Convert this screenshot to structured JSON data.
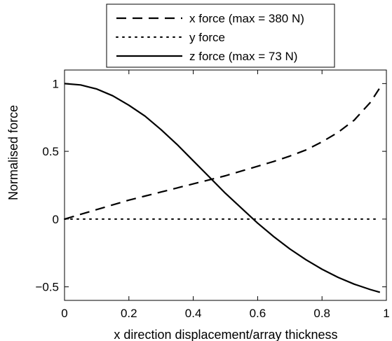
{
  "chart_data": {
    "type": "line",
    "xlabel": "x direction displacement/array thickness",
    "ylabel": "Normalised force",
    "xlim": [
      0,
      1
    ],
    "ylim": [
      -0.6,
      1.1
    ],
    "x_ticks": [
      0,
      0.2,
      0.4,
      0.6,
      0.8,
      1
    ],
    "x_tick_labels": [
      "0",
      "0.2",
      "0.4",
      "0.6",
      "0.8",
      "1"
    ],
    "y_ticks": [
      -0.5,
      0,
      0.5,
      1
    ],
    "y_tick_labels": [
      "−0.5",
      "0",
      "0.5",
      "1"
    ],
    "grid": false,
    "legend_position": "top (above plot)",
    "x": [
      0,
      0.05,
      0.1,
      0.15,
      0.2,
      0.25,
      0.3,
      0.35,
      0.4,
      0.45,
      0.5,
      0.55,
      0.6,
      0.65,
      0.7,
      0.75,
      0.8,
      0.85,
      0.9,
      0.95,
      0.98
    ],
    "series": [
      {
        "name": "x force (max = 380 N)",
        "style": "dashed",
        "color": "#000000",
        "values": [
          0,
          0.035,
          0.07,
          0.105,
          0.14,
          0.17,
          0.2,
          0.23,
          0.26,
          0.29,
          0.32,
          0.355,
          0.39,
          0.425,
          0.465,
          0.51,
          0.57,
          0.64,
          0.73,
          0.86,
          0.97
        ]
      },
      {
        "name": "y force",
        "style": "dotted",
        "color": "#000000",
        "values": [
          0,
          0,
          0,
          0,
          0,
          0,
          0,
          0,
          0,
          0,
          0,
          0,
          0,
          0,
          0,
          0,
          0,
          0,
          0,
          0,
          0
        ]
      },
      {
        "name": "z force (max = 73 N)",
        "style": "solid",
        "color": "#000000",
        "values": [
          1.0,
          0.99,
          0.96,
          0.91,
          0.84,
          0.76,
          0.66,
          0.55,
          0.43,
          0.31,
          0.19,
          0.08,
          -0.03,
          -0.13,
          -0.22,
          -0.3,
          -0.37,
          -0.43,
          -0.48,
          -0.52,
          -0.54
        ]
      }
    ]
  }
}
